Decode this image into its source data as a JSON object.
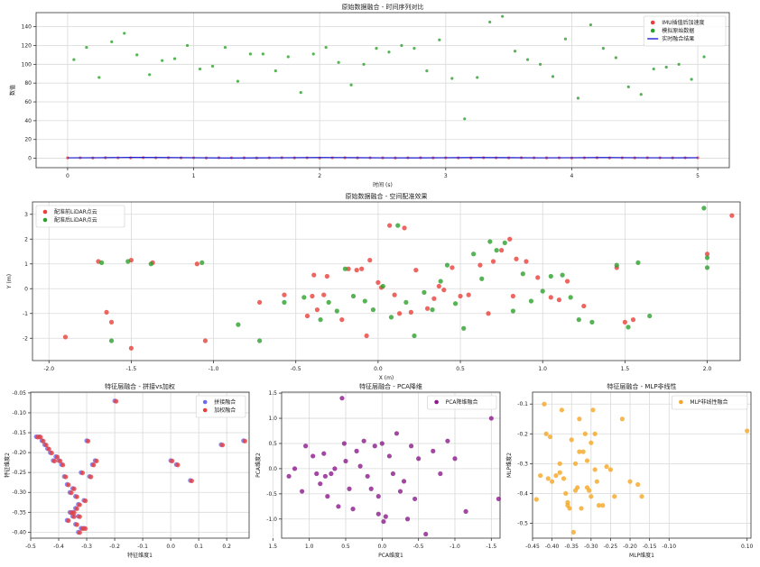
{
  "chart_data": [
    {
      "id": "c1",
      "type": "line",
      "title": "原始数据融合 - 时间序列对比",
      "xlabel": "时间 (s)",
      "ylabel": "数值",
      "xlim": [
        -0.25,
        5.25
      ],
      "ylim": [
        -10,
        155
      ],
      "xticks": [
        0,
        1,
        2,
        3,
        4,
        5
      ],
      "yticks": [
        0,
        20,
        40,
        60,
        80,
        100,
        120,
        140
      ],
      "grid": true,
      "legend": "top-right",
      "series": [
        {
          "name": "IMU插值后加速度",
          "kind": "point",
          "color": "#e8403a",
          "x": [
            0,
            0.1,
            0.2,
            0.3,
            0.4,
            0.5,
            0.6,
            0.7,
            0.8,
            0.9,
            1.0,
            1.1,
            1.2,
            1.3,
            1.4,
            1.5,
            1.6,
            1.7,
            1.8,
            1.9,
            2.0,
            2.1,
            2.2,
            2.3,
            2.4,
            2.5,
            2.6,
            2.7,
            2.8,
            2.9,
            3.0,
            3.1,
            3.2,
            3.3,
            3.4,
            3.5,
            3.6,
            3.7,
            3.8,
            3.9,
            4.0,
            4.1,
            4.2,
            4.3,
            4.4,
            4.5,
            4.6,
            4.7,
            4.8,
            4.9,
            5.0
          ],
          "y": [
            0.4,
            0.5,
            0.3,
            0.6,
            0.5,
            0.4,
            0.7,
            0.5,
            0.6,
            0.4,
            0.5,
            0.3,
            0.6,
            0.5,
            0.4,
            0.3,
            0.5,
            0.6,
            0.4,
            0.5,
            0.3,
            0.5,
            0.6,
            0.4,
            0.5,
            0.4,
            0.3,
            0.5,
            0.6,
            0.4,
            0.5,
            0.4,
            0.3,
            0.6,
            0.5,
            0.4,
            0.6,
            0.5,
            0.4,
            0.5,
            0.3,
            0.5,
            0.6,
            0.4,
            0.5,
            0.4,
            0.6,
            0.5,
            0.4,
            0.5,
            0.5
          ]
        },
        {
          "name": "模拟原始数据",
          "kind": "point",
          "color": "#2ca02c",
          "x": [
            0.05,
            0.15,
            0.25,
            0.35,
            0.45,
            0.55,
            0.65,
            0.75,
            0.85,
            0.95,
            1.05,
            1.15,
            1.25,
            1.35,
            1.45,
            1.55,
            1.65,
            1.75,
            1.85,
            1.95,
            2.05,
            2.15,
            2.25,
            2.35,
            2.45,
            2.55,
            2.65,
            2.75,
            2.85,
            2.95,
            3.05,
            3.15,
            3.25,
            3.35,
            3.45,
            3.55,
            3.65,
            3.75,
            3.85,
            3.95,
            4.05,
            4.15,
            4.25,
            4.35,
            4.45,
            4.55,
            4.65,
            4.75,
            4.85,
            4.95,
            5.05
          ],
          "y": [
            105,
            118,
            86,
            124,
            133,
            110,
            89,
            104,
            106,
            120,
            95,
            98,
            118,
            82,
            111,
            111,
            93,
            108,
            70,
            111,
            118,
            102,
            78,
            100,
            117,
            113,
            120,
            117,
            93,
            126,
            85,
            42,
            86,
            145,
            151,
            114,
            105,
            100,
            87,
            127,
            64,
            142,
            117,
            107,
            76,
            68,
            95,
            97,
            100,
            84,
            108
          ]
        },
        {
          "name": "实时融合结果",
          "kind": "line",
          "color": "#1f1fd6",
          "x": [
            0,
            0.25,
            0.5,
            0.75,
            1.0,
            1.25,
            1.5,
            1.75,
            2.0,
            2.25,
            2.5,
            2.75,
            3.0,
            3.25,
            3.5,
            3.75,
            4.0,
            4.25,
            4.5,
            4.75,
            5.0
          ],
          "y": [
            0.5,
            0.6,
            0.9,
            0.8,
            0.6,
            0.3,
            0.4,
            0.6,
            0.8,
            0.7,
            0.5,
            0.4,
            0.6,
            0.8,
            0.7,
            0.5,
            0.6,
            0.8,
            0.6,
            0.5,
            0.6
          ]
        }
      ]
    },
    {
      "id": "c2",
      "type": "scatter",
      "title": "原始数据融合 - 空间配准效果",
      "xlabel": "X (m)",
      "ylabel": "Y (m)",
      "xlim": [
        -2.1,
        2.2
      ],
      "ylim": [
        -2.9,
        3.5
      ],
      "xticks": [
        -2.0,
        -1.5,
        -1.0,
        -0.5,
        0.0,
        0.5,
        1.0,
        1.5,
        2.0
      ],
      "yticks": [
        -2,
        -1,
        0,
        1,
        2,
        3
      ],
      "grid": true,
      "legend": "top-left",
      "series": [
        {
          "name": "配准前LiDAR点云",
          "color": "#e8403a",
          "x": [
            -1.9,
            -1.7,
            -1.65,
            -1.62,
            -1.5,
            -1.5,
            -1.37,
            -1.1,
            -1.05,
            -0.72,
            -0.57,
            -0.43,
            -0.4,
            -0.39,
            -0.37,
            -0.33,
            -0.31,
            -0.22,
            -0.18,
            -0.13,
            -0.1,
            -0.07,
            -0.05,
            0.0,
            0.02,
            0.07,
            0.1,
            0.13,
            0.16,
            0.2,
            0.23,
            0.3,
            0.34,
            0.37,
            0.4,
            0.45,
            0.5,
            0.55,
            0.62,
            0.67,
            0.7,
            0.75,
            0.8,
            0.82,
            0.84,
            0.9,
            0.97,
            1.05,
            1.1,
            1.15,
            1.25,
            1.45,
            1.5,
            1.55,
            2.0,
            2.15
          ],
          "y": [
            -1.95,
            1.1,
            -0.95,
            -1.35,
            1.15,
            -2.4,
            1.05,
            1.0,
            -2.1,
            -0.55,
            -0.25,
            -1.1,
            -0.3,
            0.55,
            -0.85,
            -0.25,
            0.5,
            -1.25,
            0.8,
            0.75,
            0.8,
            -1.9,
            1.15,
            0.25,
            0.05,
            2.55,
            -0.25,
            -1.0,
            2.45,
            -0.95,
            0.75,
            -0.8,
            -0.4,
            0.1,
            -0.05,
            0.85,
            -0.3,
            -0.25,
            0.95,
            -1.0,
            1.1,
            1.55,
            2.0,
            -0.3,
            1.2,
            1.1,
            0.45,
            -0.35,
            -0.45,
            0.3,
            -0.7,
            0.85,
            -1.35,
            -1.25,
            1.4,
            2.95
          ]
        },
        {
          "name": "配准后LiDAR点云",
          "color": "#2ca02c",
          "x": [
            -1.68,
            -1.62,
            -1.52,
            -1.38,
            -1.07,
            -0.85,
            -0.72,
            -0.57,
            -0.45,
            -0.35,
            -0.3,
            -0.25,
            -0.2,
            -0.15,
            -0.08,
            -0.03,
            0.03,
            0.08,
            0.12,
            0.17,
            0.22,
            0.28,
            0.33,
            0.38,
            0.42,
            0.47,
            0.52,
            0.58,
            0.63,
            0.68,
            0.72,
            0.77,
            0.82,
            0.88,
            0.93,
            1.0,
            1.05,
            1.12,
            1.17,
            1.22,
            1.3,
            1.45,
            1.52,
            1.58,
            1.65,
            1.98,
            2.0,
            2.0
          ],
          "y": [
            1.05,
            -2.1,
            1.1,
            1.0,
            1.05,
            -1.45,
            -2.1,
            -0.55,
            -0.35,
            -1.25,
            -0.55,
            -0.9,
            0.8,
            -0.3,
            -0.5,
            -0.85,
            0.1,
            -1.15,
            2.55,
            -0.55,
            -1.9,
            -0.15,
            -0.85,
            0.3,
            0.95,
            -0.6,
            -1.6,
            1.4,
            0.4,
            1.9,
            1.55,
            1.85,
            -0.9,
            0.6,
            -0.5,
            -0.1,
            0.5,
            0.55,
            -0.35,
            -1.25,
            -1.35,
            0.95,
            -1.55,
            1.05,
            -1.1,
            3.25,
            1.25,
            0.85
          ]
        }
      ]
    },
    {
      "id": "c3",
      "type": "scatter",
      "title": "特征层融合 - 拼接vs加权",
      "xlabel": "特征维度1",
      "ylabel": "特征维度2",
      "xlim": [
        -0.5,
        0.28
      ],
      "ylim": [
        -0.415,
        -0.048
      ],
      "xticks": [
        -0.5,
        -0.4,
        -0.3,
        -0.2,
        -0.1,
        0.0,
        0.1,
        0.2
      ],
      "yticks": [
        -0.4,
        -0.35,
        -0.3,
        -0.25,
        -0.2,
        -0.15,
        -0.1,
        -0.05
      ],
      "grid": true,
      "legend": "top-right",
      "series": [
        {
          "name": "拼接融合",
          "color": "#6b6bf0",
          "x": [
            -0.48,
            -0.47,
            -0.46,
            -0.45,
            -0.44,
            -0.43,
            -0.42,
            -0.41,
            -0.4,
            -0.39,
            -0.38,
            -0.37,
            -0.36,
            -0.35,
            -0.34,
            -0.33,
            -0.32,
            -0.31,
            -0.3,
            -0.29,
            -0.28,
            -0.27,
            -0.2,
            0.0,
            0.02,
            0.07,
            0.18,
            0.26,
            -0.35,
            -0.34,
            -0.33,
            -0.32,
            -0.36,
            -0.37,
            -0.35,
            -0.34,
            -0.33,
            -0.31
          ],
          "y": [
            -0.16,
            -0.16,
            -0.17,
            -0.18,
            -0.19,
            -0.2,
            -0.22,
            -0.21,
            -0.22,
            -0.23,
            -0.26,
            -0.28,
            -0.3,
            -0.29,
            -0.31,
            -0.33,
            -0.25,
            -0.32,
            -0.17,
            -0.26,
            -0.23,
            -0.22,
            -0.07,
            -0.22,
            -0.23,
            -0.27,
            -0.18,
            -0.17,
            -0.36,
            -0.38,
            -0.4,
            -0.39,
            -0.35,
            -0.37,
            -0.35,
            -0.34,
            -0.36,
            -0.39
          ]
        },
        {
          "name": "加权融合",
          "color": "#e8403a",
          "x": [
            -0.475,
            -0.465,
            -0.455,
            -0.445,
            -0.435,
            -0.425,
            -0.415,
            -0.405,
            -0.395,
            -0.385,
            -0.375,
            -0.365,
            -0.355,
            -0.345,
            -0.335,
            -0.325,
            -0.315,
            -0.305,
            -0.295,
            -0.285,
            -0.275,
            -0.265,
            -0.195,
            0.005,
            0.025,
            0.075,
            0.185,
            0.265,
            -0.345,
            -0.335,
            -0.325,
            -0.315,
            -0.355,
            -0.365,
            -0.345,
            -0.335,
            -0.325,
            -0.305
          ],
          "y": [
            -0.161,
            -0.161,
            -0.171,
            -0.181,
            -0.191,
            -0.201,
            -0.221,
            -0.211,
            -0.221,
            -0.231,
            -0.261,
            -0.281,
            -0.301,
            -0.291,
            -0.311,
            -0.331,
            -0.251,
            -0.321,
            -0.171,
            -0.261,
            -0.231,
            -0.221,
            -0.071,
            -0.221,
            -0.231,
            -0.271,
            -0.181,
            -0.171,
            -0.361,
            -0.381,
            -0.401,
            -0.391,
            -0.351,
            -0.371,
            -0.351,
            -0.341,
            -0.361,
            -0.391
          ]
        }
      ]
    },
    {
      "id": "c4",
      "type": "scatter",
      "title": "特征层融合 - PCA降维",
      "xlabel": "PCA维度1",
      "ylabel": "PCA维度2",
      "xlim": [
        1.38,
        -1.62
      ],
      "ylim": [
        -1.38,
        1.52
      ],
      "xticks": [
        1.5,
        1.0,
        0.5,
        0.0,
        -0.5,
        -1.0,
        -1.5
      ],
      "yticks": [
        -1.0,
        -0.5,
        0.0,
        0.5,
        1.0,
        1.5
      ],
      "grid": true,
      "legend": "top-right",
      "series": [
        {
          "name": "PCA降维融合",
          "color": "#8b1a8b",
          "x": [
            1.28,
            1.2,
            1.1,
            1.05,
            0.95,
            0.9,
            0.85,
            0.8,
            0.75,
            0.7,
            0.65,
            0.6,
            0.55,
            0.5,
            0.45,
            0.4,
            0.35,
            0.3,
            0.25,
            0.2,
            0.15,
            0.1,
            0.05,
            0.0,
            -0.05,
            -0.1,
            -0.15,
            -0.2,
            -0.25,
            -0.3,
            -0.35,
            -0.4,
            -0.45,
            -0.5,
            -0.6,
            -0.7,
            -0.8,
            -0.9,
            -1.0,
            -1.15,
            -1.5,
            -1.6,
            0.05,
            -0.02,
            0.52,
            0.78
          ],
          "y": [
            -0.15,
            0.0,
            -0.45,
            0.45,
            0.25,
            -0.1,
            -0.3,
            0.3,
            -0.55,
            -0.1,
            0.0,
            -0.75,
            1.4,
            0.15,
            -0.4,
            -0.8,
            0.35,
            0.05,
            0.55,
            -0.15,
            -0.4,
            0.45,
            -0.55,
            0.5,
            -0.95,
            0.25,
            -0.1,
            0.7,
            -0.45,
            -0.25,
            -1.0,
            0.45,
            -0.6,
            0.2,
            -1.3,
            0.35,
            -0.1,
            0.55,
            0.2,
            -0.85,
            1.0,
            -0.6,
            -0.9,
            -1.05,
            0.5,
            -0.15
          ]
        }
      ]
    },
    {
      "id": "c5",
      "type": "scatter",
      "title": "特征层融合 - MLP非线性",
      "xlabel": "MLP维度1",
      "ylabel": "MLP维度2",
      "xlim": [
        -0.45,
        0.11
      ],
      "ylim": [
        -0.55,
        -0.06
      ],
      "xticks": [
        -0.45,
        -0.4,
        -0.35,
        -0.3,
        -0.25,
        -0.2,
        -0.15,
        -0.1,
        0.1
      ],
      "xtick_labels": [
        "-0.45",
        "-0.40",
        "-0.35",
        "-0.30",
        "-0.25",
        "-0.20",
        "-0.15",
        "-0.10",
        "0.10"
      ],
      "yticks": [
        -0.5,
        -0.4,
        -0.3,
        -0.2,
        -0.1
      ],
      "grid": true,
      "legend": "top-right",
      "series": [
        {
          "name": "MLP非线性融合",
          "color": "#f5a623",
          "x": [
            -0.44,
            -0.43,
            -0.42,
            -0.415,
            -0.41,
            -0.405,
            -0.4,
            -0.39,
            -0.38,
            -0.375,
            -0.37,
            -0.365,
            -0.36,
            -0.355,
            -0.35,
            -0.345,
            -0.34,
            -0.335,
            -0.33,
            -0.325,
            -0.32,
            -0.315,
            -0.31,
            -0.305,
            -0.3,
            -0.295,
            -0.29,
            -0.285,
            -0.28,
            -0.27,
            -0.26,
            -0.25,
            -0.24,
            -0.22,
            -0.2,
            -0.18,
            -0.17,
            0.1,
            -0.38,
            -0.34,
            -0.31,
            -0.29,
            -0.36,
            -0.33,
            -0.3
          ],
          "y": [
            -0.42,
            -0.34,
            -0.1,
            -0.2,
            -0.35,
            -0.21,
            -0.36,
            -0.34,
            -0.3,
            -0.12,
            -0.35,
            -0.4,
            -0.44,
            -0.45,
            -0.22,
            -0.53,
            -0.3,
            -0.38,
            -0.15,
            -0.45,
            -0.26,
            -0.2,
            -0.38,
            -0.39,
            -0.41,
            -0.12,
            -0.2,
            -0.36,
            -0.44,
            -0.44,
            -0.31,
            -0.32,
            -0.41,
            -0.15,
            -0.36,
            -0.37,
            -0.41,
            -0.19,
            -0.33,
            -0.39,
            -0.29,
            -0.32,
            -0.43,
            -0.26,
            -0.23
          ]
        }
      ]
    }
  ]
}
